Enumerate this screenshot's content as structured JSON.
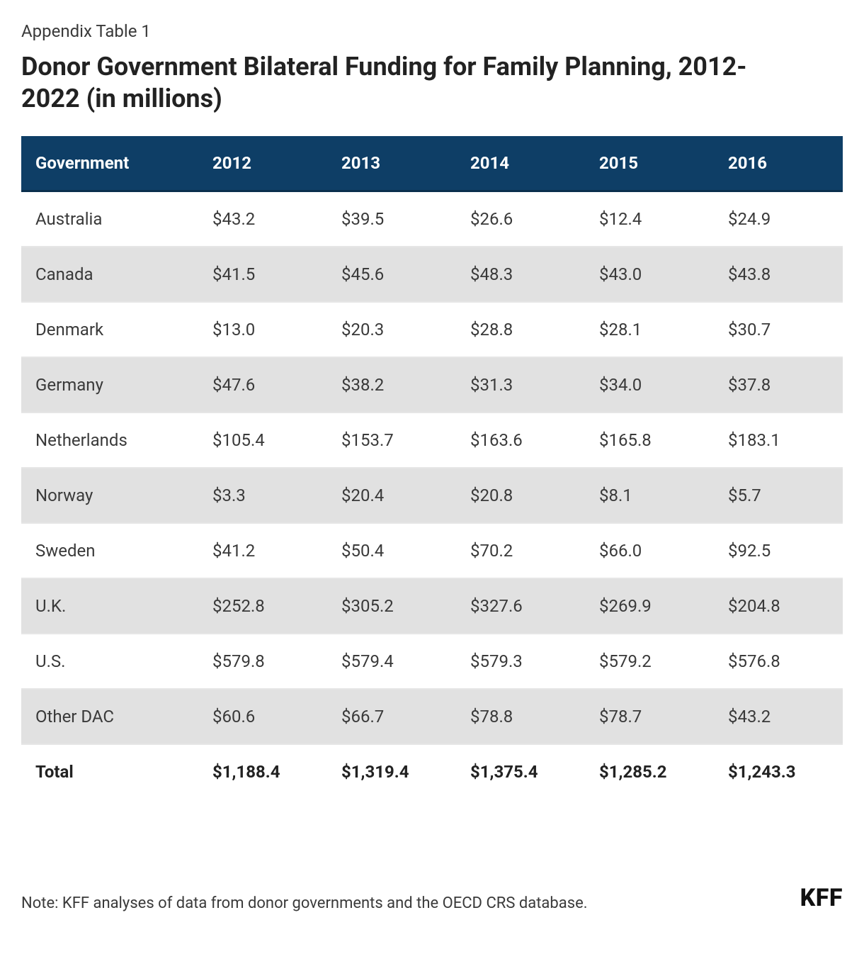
{
  "header": {
    "pretitle": "Appendix Table 1",
    "title": "Donor Government Bilateral Funding for Family Planning, 2012-2022 (in millions)"
  },
  "table": {
    "type": "table",
    "header_bg": "#0e3e66",
    "header_text_color": "#ffffff",
    "stripe_bg": "#e1e1e1",
    "row_bg": "#ffffff",
    "border_color": "#e6e6e6",
    "font_size": 24,
    "columns": [
      "Government",
      "2012",
      "2013",
      "2014",
      "2015",
      "2016"
    ],
    "rows": [
      [
        "Australia",
        "$43.2",
        "$39.5",
        "$26.6",
        "$12.4",
        "$24.9"
      ],
      [
        "Canada",
        "$41.5",
        "$45.6",
        "$48.3",
        "$43.0",
        "$43.8"
      ],
      [
        "Denmark",
        "$13.0",
        "$20.3",
        "$28.8",
        "$28.1",
        "$30.7"
      ],
      [
        "Germany",
        "$47.6",
        "$38.2",
        "$31.3",
        "$34.0",
        "$37.8"
      ],
      [
        "Netherlands",
        "$105.4",
        "$153.7",
        "$163.6",
        "$165.8",
        "$183.1"
      ],
      [
        "Norway",
        "$3.3",
        "$20.4",
        "$20.8",
        "$8.1",
        "$5.7"
      ],
      [
        "Sweden",
        "$41.2",
        "$50.4",
        "$70.2",
        "$66.0",
        "$92.5"
      ],
      [
        "U.K.",
        "$252.8",
        "$305.2",
        "$327.6",
        "$269.9",
        "$204.8"
      ],
      [
        "U.S.",
        "$579.8",
        "$579.4",
        "$579.3",
        "$579.2",
        "$576.8"
      ],
      [
        "Other DAC",
        "$60.6",
        "$66.7",
        "$78.8",
        "$78.7",
        "$43.2"
      ]
    ],
    "total_row": [
      "Total",
      "$1,188.4",
      "$1,319.4",
      "$1,375.4",
      "$1,285.2",
      "$1,243.3"
    ]
  },
  "footer": {
    "note": "Note: KFF analyses of data from donor governments and the OECD CRS database.",
    "brand": "KFF"
  }
}
